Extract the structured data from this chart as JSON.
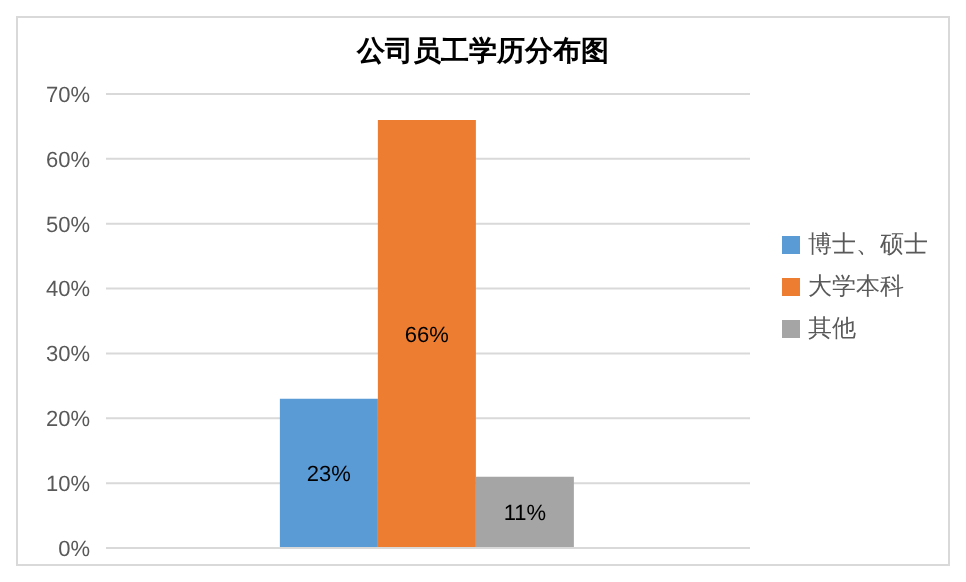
{
  "chart_data": {
    "type": "bar",
    "title": "公司员工学历分布图",
    "categories": [
      null
    ],
    "series": [
      {
        "name": "博士、硕士",
        "color": "#5b9bd5",
        "values": [
          23
        ],
        "value_labels": [
          "23%"
        ]
      },
      {
        "name": "大学本科",
        "color": "#ed7d31",
        "values": [
          66
        ],
        "value_labels": [
          "66%"
        ]
      },
      {
        "name": "其他",
        "color": "#a5a5a5",
        "values": [
          11
        ],
        "value_labels": [
          "11%"
        ]
      }
    ],
    "ylim": [
      0,
      70
    ],
    "yticks": [
      {
        "value": 0,
        "label": "0%"
      },
      {
        "value": 10,
        "label": "10%"
      },
      {
        "value": 20,
        "label": "20%"
      },
      {
        "value": 30,
        "label": "30%"
      },
      {
        "value": 40,
        "label": "40%"
      },
      {
        "value": 50,
        "label": "50%"
      },
      {
        "value": 60,
        "label": "60%"
      },
      {
        "value": 70,
        "label": "70%"
      }
    ],
    "grid": "y",
    "legend": "right"
  }
}
